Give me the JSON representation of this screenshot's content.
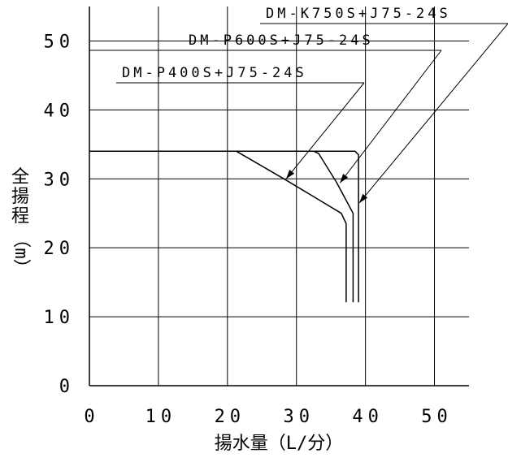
{
  "chart_data": {
    "type": "line",
    "title": "",
    "xlabel": "揚水量（L/分）",
    "ylabel_chars": [
      "全",
      "揚",
      "程"
    ],
    "ylabel_unit": "（m）",
    "xlim": [
      0,
      55
    ],
    "ylim": [
      0,
      55
    ],
    "x_ticks": [
      0,
      10,
      20,
      30,
      40,
      50
    ],
    "y_ticks": [
      0,
      10,
      20,
      30,
      40,
      50
    ],
    "grid": true,
    "series": [
      {
        "name": "DM-P400S+J75-24S",
        "points": [
          [
            0,
            34
          ],
          [
            21.3,
            34
          ],
          [
            28.2,
            30
          ],
          [
            36.5,
            25
          ],
          [
            37.2,
            23.5
          ],
          [
            37.2,
            12.1
          ]
        ]
      },
      {
        "name": "DM-P600S+J75-24S",
        "points": [
          [
            0,
            34
          ],
          [
            32.5,
            34
          ],
          [
            33.2,
            33.7
          ],
          [
            35.8,
            29.5
          ],
          [
            38.2,
            25
          ],
          [
            38.2,
            12.1
          ]
        ]
      },
      {
        "name": "DM-K750S+J75-24S",
        "points": [
          [
            0,
            34
          ],
          [
            38.5,
            34
          ],
          [
            39,
            33.5
          ],
          [
            39,
            12.1
          ]
        ]
      }
    ],
    "annotations": [
      {
        "text": "DM-P400S+J75-24S",
        "points_to": [
          28.5,
          30
        ]
      },
      {
        "text": "DM-P600S+J75-24S",
        "points_to": [
          36.3,
          29.4
        ]
      },
      {
        "text": "DM-K750S+J75-24S",
        "points_to": [
          39.1,
          26.5
        ]
      }
    ]
  }
}
